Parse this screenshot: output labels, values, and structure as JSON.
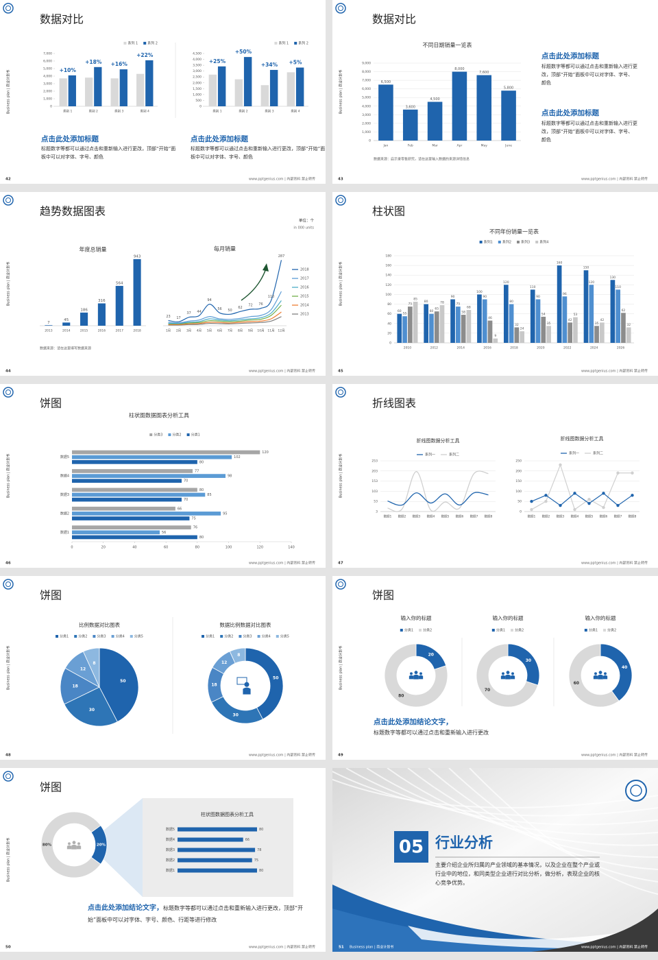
{
  "common": {
    "side_label": "Business plan | 商业计划书",
    "footer": "www.pptgenius.com | 内部资料 禁止转传"
  },
  "slides": [
    {
      "number": 42,
      "title": "数据对比",
      "charts": [
        {
          "type": "bar",
          "categories": [
            "类别 1",
            "类别 2",
            "类别 3",
            "类别 4"
          ],
          "series": [
            {
              "name": "系列 1",
              "color": "#d9d9d9",
              "values": [
                3700,
                3800,
                3700,
                4300
              ]
            },
            {
              "name": "系列 2",
              "color": "#1f64ad",
              "values": [
                4100,
                5200,
                4900,
                6100
              ]
            }
          ],
          "annotations": [
            "+10%",
            "+18%",
            "+16%",
            "+22%"
          ],
          "legend": "top-right",
          "ylim": [
            0,
            7000
          ],
          "yticks": [
            0,
            {
              "value": 1000,
              "label": "1,000"
            },
            {
              "value": 2000,
              "label": "2,000"
            },
            {
              "value": 3000,
              "label": "3,000"
            },
            {
              "value": 4000,
              "label": "4,000"
            },
            {
              "value": 5000,
              "label": "5,000"
            },
            {
              "value": 6000,
              "label": "6,000"
            },
            {
              "value": 7000,
              "label": "7,000"
            }
          ]
        },
        {
          "type": "bar",
          "categories": [
            "类别 1",
            "类别 2",
            "类别 3",
            "类别 4"
          ],
          "series": [
            {
              "name": "系列 1",
              "color": "#d9d9d9",
              "values": [
                2700,
                2300,
                1800,
                2900
              ]
            },
            {
              "name": "系列 2",
              "color": "#1f64ad",
              "values": [
                3400,
                4200,
                3100,
                3300
              ]
            }
          ],
          "annotations": [
            "+25%",
            "+50%",
            "+34%",
            "+5%"
          ],
          "legend": "top-right",
          "ylim": [
            0,
            4500
          ],
          "yticks": [
            0,
            500,
            {
              "value": 1000,
              "label": "1,000"
            },
            {
              "value": 1500,
              "label": "1,500"
            },
            {
              "value": 2000,
              "label": "2,000"
            },
            {
              "value": 2500,
              "label": "2,500"
            },
            {
              "value": 3000,
              "label": "3,000"
            },
            {
              "value": 3500,
              "label": "3,500"
            },
            {
              "value": 4000,
              "label": "4,000"
            },
            {
              "value": 4500,
              "label": "4,500"
            }
          ]
        }
      ],
      "texts": [
        {
          "heading": "点击此处添加标题",
          "body": "标题数字等都可以通过点击和重新输入进行更改，顶部“开始”面板中可以对字体、字号、颜色"
        },
        {
          "heading": "点击此处添加标题",
          "body": "标题数字等都可以通过点击和重新输入进行更改，顶部“开始”面板中可以对字体、字号、颜色"
        }
      ]
    },
    {
      "number": 43,
      "title": "数据对比",
      "charts": [
        {
          "type": "bar",
          "title": "不同日期销量一览表",
          "categories": [
            "Jan",
            "Feb",
            "Mar",
            "Apr",
            "May",
            "June"
          ],
          "values": [
            6500,
            3600,
            4500,
            8000,
            7600,
            5800
          ],
          "value_labels": [
            "6,500",
            "3,600",
            "4,500",
            "8,000",
            "7,600",
            "5,800"
          ],
          "show_values": true,
          "color": "#1f64ad",
          "ylim": [
            0,
            9000
          ],
          "yticks": [
            0,
            {
              "value": 1000,
              "label": "1,000"
            },
            {
              "value": 2000,
              "label": "2,000"
            },
            {
              "value": 3000,
              "label": "3,000"
            },
            {
              "value": 4000,
              "label": "4,000"
            },
            {
              "value": 5000,
              "label": "5,000"
            },
            {
              "value": 6000,
              "label": "6,000"
            },
            {
              "value": 7000,
              "label": "7,000"
            },
            {
              "value": 8000,
              "label": "8,000"
            },
            {
              "value": 9000,
              "label": "9,000"
            }
          ],
          "grid": true
        }
      ],
      "source": "数据来源：启示录零售研究，请在这里输入数据的来源详情信息",
      "texts": [
        {
          "heading": "点击此处添加标题",
          "body": "标题数字等都可以通过点击和重新输入进行更改，顶部“开始”面板中可以对字体、字号、颜色"
        },
        {
          "heading": "点击此处添加标题",
          "body": "标题数字等都可以通过点击和重新输入进行更改，顶部“开始”面板中可以对字体、字号、颜色"
        }
      ]
    },
    {
      "number": 44,
      "title": "趋势数据图表",
      "unit": "单位：个",
      "unit_en": "in 000 units",
      "charts": [
        {
          "type": "bar",
          "title": "年度总销量",
          "categories": [
            "2013",
            "2014",
            "2015",
            "2016",
            "2017",
            "2018"
          ],
          "values": [
            7,
            45,
            186,
            316,
            564,
            943
          ],
          "show_values": true,
          "color": "#1f64ad",
          "ylim": [
            0,
            1000
          ]
        },
        {
          "type": "line",
          "title": "每月销量",
          "smooth": true,
          "legend": "right",
          "categories": [
            "1月",
            "2月",
            "3月",
            "4月",
            "5月",
            "6月",
            "7月",
            "8月",
            "9月",
            "10月",
            "11月",
            "12月"
          ],
          "series": [
            {
              "name": "2018",
              "color": "#1f64ad",
              "show_values": true,
              "values": [
                23,
                17,
                37,
                44,
                94,
                56,
                50,
                62,
                72,
                76,
                110,
                287
              ]
            },
            {
              "name": "2017",
              "color": "#5b9bd5",
              "values": [
                15,
                12,
                20,
                25,
                40,
                30,
                28,
                32,
                40,
                45,
                70,
                150
              ]
            },
            {
              "name": "2016",
              "color": "#4bacc6",
              "values": [
                10,
                10,
                15,
                18,
                30,
                25,
                22,
                26,
                30,
                35,
                55,
                110
              ]
            },
            {
              "name": "2015",
              "color": "#70ad47",
              "values": [
                8,
                8,
                12,
                14,
                22,
                20,
                18,
                20,
                25,
                28,
                45,
                90
              ]
            },
            {
              "name": "2014",
              "color": "#ed7d31",
              "values": [
                5,
                5,
                8,
                10,
                15,
                14,
                12,
                15,
                18,
                20,
                30,
                60
              ]
            },
            {
              "name": "2013",
              "color": "#7f7f7f",
              "values": [
                3,
                3,
                5,
                6,
                10,
                9,
                8,
                10,
                12,
                14,
                20,
                40
              ]
            }
          ],
          "ylim": [
            0,
            300
          ]
        }
      ],
      "source": "数据来源：请在这里填写数据来源"
    },
    {
      "number": 45,
      "title": "柱状图",
      "charts": [
        {
          "type": "bar",
          "title": "不同年份销量一览表",
          "legend": "top",
          "categories": [
            "2010",
            "2012",
            "2014",
            "2016",
            "2018",
            "2020",
            "2022",
            "2024",
            "2026"
          ],
          "series": [
            {
              "name": "系列1",
              "color": "#1f64ad",
              "show_values": true,
              "values": [
                60,
                80,
                90,
                100,
                120,
                110,
                160,
                150,
                130
              ]
            },
            {
              "name": "系列2",
              "color": "#4f8fd0",
              "show_values": true,
              "values": [
                55,
                60,
                75,
                90,
                80,
                90,
                96,
                120,
                110
              ]
            },
            {
              "name": "系列3",
              "color": "#8c8c8c",
              "show_values": true,
              "values": [
                75,
                65,
                58,
                46,
                32,
                54,
                42,
                35,
                62
              ]
            },
            {
              "name": "系列4",
              "color": "#c8c8c8",
              "show_values": true,
              "values": [
                85,
                78,
                68,
                9,
                24,
                35,
                53,
                42,
                32
              ]
            }
          ],
          "ylim": [
            0,
            180
          ],
          "yticks": [
            0,
            20,
            40,
            60,
            80,
            100,
            120,
            140,
            160,
            180
          ],
          "grid": true
        }
      ]
    },
    {
      "number": 46,
      "title": "饼图",
      "charts": [
        {
          "type": "hbar",
          "title": "柱状图数据图表分析工具",
          "legend": "top",
          "categories": [
            "数据1",
            "数据2",
            "数据3",
            "数据4",
            "数据5"
          ],
          "series": [
            {
              "name": "分类3",
              "color": "#a6a6a6",
              "show_values": true,
              "values": [
                76,
                66,
                80,
                77,
                120
              ]
            },
            {
              "name": "分类2",
              "color": "#5b9bd5",
              "show_values": true,
              "values": [
                56,
                95,
                85,
                98,
                102
              ]
            },
            {
              "name": "分类1",
              "color": "#1f64ad",
              "show_values": true,
              "values": [
                80,
                75,
                70,
                70,
                80
              ]
            }
          ],
          "xlim": [
            0,
            140
          ],
          "xticks": [
            0,
            20,
            40,
            60,
            80,
            100,
            120,
            140
          ]
        }
      ]
    },
    {
      "number": 47,
      "title": "折线图表",
      "charts": [
        {
          "type": "line",
          "title": "折线图数据分析工具",
          "smooth": true,
          "legend": "top",
          "categories": [
            "数据1",
            "数据2",
            "数据3",
            "数据4",
            "数据5",
            "数据6",
            "数据7",
            "数据8"
          ],
          "series": [
            {
              "name": "系列一",
              "color": "#1f64ad",
              "values": [
                55,
                35,
                95,
                45,
                90,
                35,
                95,
                85
              ]
            },
            {
              "name": "系列二",
              "color": "#d0d0d0",
              "values": [
                20,
                15,
                200,
                10,
                50,
                20,
                190,
                190
              ]
            }
          ],
          "ylim": [
            3,
            253
          ],
          "yticks": [
            3,
            53,
            103,
            153,
            203,
            253
          ],
          "grid": true
        },
        {
          "type": "line",
          "title": "折线图数据分析工具",
          "markers": true,
          "legend": "top",
          "categories": [
            "数据1",
            "数据2",
            "数据3",
            "数据4",
            "数据5",
            "数据6",
            "数据7",
            "数据8"
          ],
          "series": [
            {
              "name": "系列一",
              "color": "#1f64ad",
              "values": [
                50,
                80,
                30,
                90,
                40,
                90,
                30,
                80
              ]
            },
            {
              "name": "系列二",
              "color": "#d0d0d0",
              "values": [
                10,
                50,
                230,
                10,
                60,
                20,
                190,
                190
              ]
            }
          ],
          "ylim": [
            0,
            250
          ],
          "yticks": [
            0,
            50,
            100,
            150,
            200,
            250
          ],
          "grid": true
        }
      ]
    },
    {
      "number": 48,
      "title": "饼图",
      "charts": [
        {
          "type": "pie",
          "title": "比例数据对比图表",
          "legend": "top",
          "categories": [
            "分类1",
            "分类2",
            "分类3",
            "分类4",
            "分类5"
          ],
          "values": [
            50,
            30,
            18,
            12,
            8
          ],
          "colors": [
            "#1f64ad",
            "#2e75b6",
            "#4a86c5",
            "#6a9fd4",
            "#8db8e0"
          ]
        },
        {
          "type": "donut",
          "title": "数据比例数据对比图表",
          "legend": "top",
          "categories": [
            "分类1",
            "分类2",
            "分类3",
            "分类4",
            "分类5"
          ],
          "values": [
            50,
            30,
            18,
            12,
            8
          ],
          "colors": [
            "#1f64ad",
            "#2e75b6",
            "#4a86c5",
            "#6a9fd4",
            "#8db8e0"
          ]
        }
      ]
    },
    {
      "number": 49,
      "title": "饼图",
      "charts": [
        {
          "type": "donut",
          "title": "输入你的标题",
          "legend": "top",
          "categories": [
            "分类1",
            "分类2"
          ],
          "values": [
            20,
            80
          ],
          "colors": [
            "#1f64ad",
            "#d9d9d9"
          ]
        },
        {
          "type": "donut",
          "title": "输入你的标题",
          "legend": "top",
          "categories": [
            "分类1",
            "分类2"
          ],
          "values": [
            30,
            70
          ],
          "colors": [
            "#1f64ad",
            "#d9d9d9"
          ]
        },
        {
          "type": "donut",
          "title": "输入你的标题",
          "legend": "top",
          "categories": [
            "分类1",
            "分类2"
          ],
          "values": [
            40,
            60
          ],
          "colors": [
            "#1f64ad",
            "#d9d9d9"
          ]
        }
      ],
      "conclusion": {
        "heading": "点击此处添加结论文字，",
        "body": "标题数字等都可以通过点击和重新输入进行更改"
      }
    },
    {
      "number": 50,
      "title": "饼图",
      "charts": [
        {
          "type": "donut",
          "values": [
            20,
            80
          ],
          "value_labels": [
            "20%",
            "80%"
          ],
          "colors": [
            "#1f64ad",
            "#d9d9d9"
          ]
        },
        {
          "type": "hbar",
          "title": "柱状图数据图表分析工具",
          "categories": [
            "数据1",
            "数据2",
            "数据3",
            "数据4",
            "数据5"
          ],
          "values": [
            80,
            75,
            78,
            66,
            80
          ],
          "show_values": true,
          "color": "#1f64ad",
          "xlim": [
            0,
            100
          ]
        }
      ],
      "conclusion": {
        "heading": "点击此处添加结论文字，",
        "body": "标题数字等都可以通过点击和重新输入进行更改，顶部“开始”面板中可以对字体、字号、颜色、行距等进行修改"
      }
    },
    {
      "number": 51,
      "section_number": "05",
      "title": "行业分析",
      "body": "主要介绍企业所归属的产业领域的基本情况，以及企业在整个产业或行业中的地位，和同类型企业进行对比分析，做分析，表现企业的核心竞争优势。"
    }
  ]
}
